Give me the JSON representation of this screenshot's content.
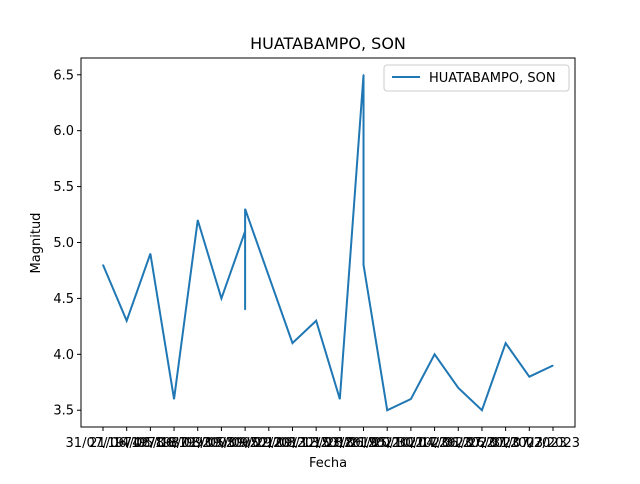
{
  "chart_data": {
    "type": "line",
    "title": "HUATABAMPO, SON",
    "xlabel": "Fecha",
    "ylabel": "Magnitud",
    "ylim": [
      3.35,
      6.65
    ],
    "yticks": [
      "3.5",
      "4.0",
      "4.5",
      "5.0",
      "5.5",
      "6.0",
      "6.5"
    ],
    "grid": false,
    "legend_position": "top-right",
    "x_tick_labels": [
      "31/07/1974",
      "21/06/1978",
      "14/08/1987",
      "05/06/1993",
      "18/01/2005",
      "08/09/2005",
      "05/09/2012",
      "09/02/2013",
      "29/09/2015",
      "08/12/2018",
      "13/03/2019",
      "28/06/2021",
      "21/05/2021",
      "20/10/2023",
      "30/04/2023",
      "17/06/2023",
      "31/07/2023",
      "26/07/2023",
      "31/07/2023",
      "07/2023"
    ],
    "series": [
      {
        "name": "HUATABAMPO, SON",
        "color": "#1f77b4",
        "points": [
          {
            "x": 0,
            "y": 4.8
          },
          {
            "x": 1,
            "y": 4.3
          },
          {
            "x": 2,
            "y": 4.9
          },
          {
            "x": 3,
            "y": 3.6
          },
          {
            "x": 4,
            "y": 5.2
          },
          {
            "x": 5,
            "y": 4.5
          },
          {
            "x": 6,
            "y": 5.1
          },
          {
            "x": 6,
            "y": 4.4
          },
          {
            "x": 6,
            "y": 5.3
          },
          {
            "x": 8,
            "y": 4.1
          },
          {
            "x": 9,
            "y": 4.3
          },
          {
            "x": 10,
            "y": 3.6
          },
          {
            "x": 11,
            "y": 6.5
          },
          {
            "x": 11,
            "y": 4.8
          },
          {
            "x": 12,
            "y": 3.5
          },
          {
            "x": 13,
            "y": 3.6
          },
          {
            "x": 14,
            "y": 4.0
          },
          {
            "x": 15,
            "y": 3.7
          },
          {
            "x": 16,
            "y": 3.5
          },
          {
            "x": 17,
            "y": 4.1
          },
          {
            "x": 18,
            "y": 3.8
          },
          {
            "x": 19,
            "y": 3.9
          }
        ]
      }
    ]
  }
}
